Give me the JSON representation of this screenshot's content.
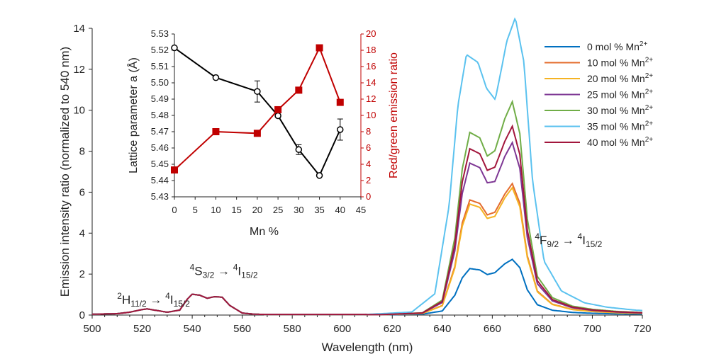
{
  "chart_data": [
    {
      "type": "line",
      "title": "",
      "xlabel": "Wavelength (nm)",
      "ylabel": "Emission intensity ratio (normalized to 540 nm)",
      "xlim": [
        500,
        720
      ],
      "ylim": [
        0,
        14
      ],
      "xticks": [
        500,
        520,
        540,
        560,
        580,
        600,
        620,
        640,
        660,
        680,
        700,
        720
      ],
      "yticks": [
        0,
        2,
        4,
        6,
        8,
        10,
        12,
        14
      ],
      "legend_position": "top-right",
      "annotations": [
        {
          "parts": [
            {
              "t": "2",
              "sup": true
            },
            {
              "t": "H"
            },
            {
              "t": "11/2",
              "sub": true
            },
            {
              "t": " → "
            },
            {
              "t": "4",
              "sup": true
            },
            {
              "t": "I"
            },
            {
              "t": "15/2",
              "sub": true
            }
          ],
          "at": [
            510,
            0.55
          ]
        },
        {
          "parts": [
            {
              "t": "4",
              "sup": true
            },
            {
              "t": "S"
            },
            {
              "t": "3/2",
              "sub": true
            },
            {
              "t": " → "
            },
            {
              "t": "4",
              "sup": true
            },
            {
              "t": "I"
            },
            {
              "t": "15/2",
              "sub": true
            }
          ],
          "at": [
            539,
            1.95
          ]
        },
        {
          "parts": [
            {
              "t": "4",
              "sup": true
            },
            {
              "t": "F"
            },
            {
              "t": "9/2",
              "sub": true
            },
            {
              "t": " → "
            },
            {
              "t": "4",
              "sup": true
            },
            {
              "t": "I"
            },
            {
              "t": "15/2",
              "sub": true
            }
          ],
          "at": [
            677,
            3.45
          ]
        }
      ],
      "green_band": {
        "x": [
          500,
          510,
          515,
          520,
          522,
          525,
          530,
          535,
          538,
          540,
          543,
          546,
          549,
          552,
          555,
          560,
          565,
          570
        ],
        "y": [
          0.02,
          0.05,
          0.12,
          0.25,
          0.28,
          0.22,
          0.12,
          0.22,
          0.75,
          1.0,
          0.95,
          0.8,
          0.88,
          0.85,
          0.45,
          0.08,
          0.02,
          0.01
        ]
      },
      "series": [
        {
          "name": "0 mol % Mn",
          "color": "#0070c0",
          "red_peaks": [
            2.25,
            2.05,
            2.7
          ],
          "red_wide": 1.0
        },
        {
          "name": "10 mol % Mn",
          "color": "#e46c2e",
          "red_peaks": [
            5.6,
            5.0,
            6.4
          ],
          "red_wide": 1.0
        },
        {
          "name": "20 mol % Mn",
          "color": "#f5b323",
          "red_peaks": [
            5.4,
            4.8,
            6.2
          ],
          "red_wide": 1.0
        },
        {
          "name": "25 mol % Mn",
          "color": "#7e3794",
          "red_peaks": [
            7.4,
            6.5,
            8.4
          ],
          "red_wide": 1.0
        },
        {
          "name": "30 mol % Mn",
          "color": "#70ad47",
          "red_peaks": [
            8.9,
            8.0,
            10.4
          ],
          "red_wide": 1.0
        },
        {
          "name": "35 mol % Mn",
          "color": "#5bc2ef",
          "red_peaks": [
            12.7,
            10.5,
            14.5
          ],
          "red_wide": 1.15
        },
        {
          "name": "40 mol % Mn",
          "color": "#a2163c",
          "red_peaks": [
            8.1,
            7.2,
            9.2
          ],
          "red_wide": 1.0
        }
      ],
      "legend_superscript": "2+"
    },
    {
      "type": "line",
      "title": "",
      "xlabel": "Mn %",
      "ylabel": "Lattice parameter a (Å)",
      "y2label": "Red/green emission ratio",
      "xlim": [
        0,
        45
      ],
      "ylim": [
        5.43,
        5.53
      ],
      "y2lim": [
        0,
        20
      ],
      "xticks": [
        0,
        5,
        10,
        15,
        20,
        25,
        30,
        35,
        40,
        45
      ],
      "yticks": [
        "5.43",
        "5.44",
        "5.45",
        "5.46",
        "5.47",
        "5.48",
        "5.49",
        "5.50",
        "5.51",
        "5.52",
        "5.53"
      ],
      "y2ticks": [
        0,
        2,
        4,
        6,
        8,
        10,
        12,
        14,
        16,
        18,
        20
      ],
      "series": [
        {
          "name": "Lattice parameter a",
          "axis": "left",
          "marker": "open-circle",
          "color": "#000000",
          "x": [
            0,
            10,
            20,
            25,
            30,
            35,
            40
          ],
          "y": [
            5.5215,
            5.5032,
            5.4947,
            5.4798,
            5.459,
            5.4431,
            5.4713
          ],
          "err": [
            0.001,
            0.001,
            0.0065,
            0.001,
            0.003,
            0.0015,
            0.0065
          ]
        },
        {
          "name": "Red/green emission ratio",
          "axis": "right",
          "marker": "square",
          "color": "#c00000",
          "x": [
            0,
            10,
            20,
            25,
            30,
            35,
            40
          ],
          "y": [
            3.3,
            8.0,
            7.8,
            10.7,
            13.1,
            18.3,
            11.6
          ]
        }
      ]
    }
  ]
}
